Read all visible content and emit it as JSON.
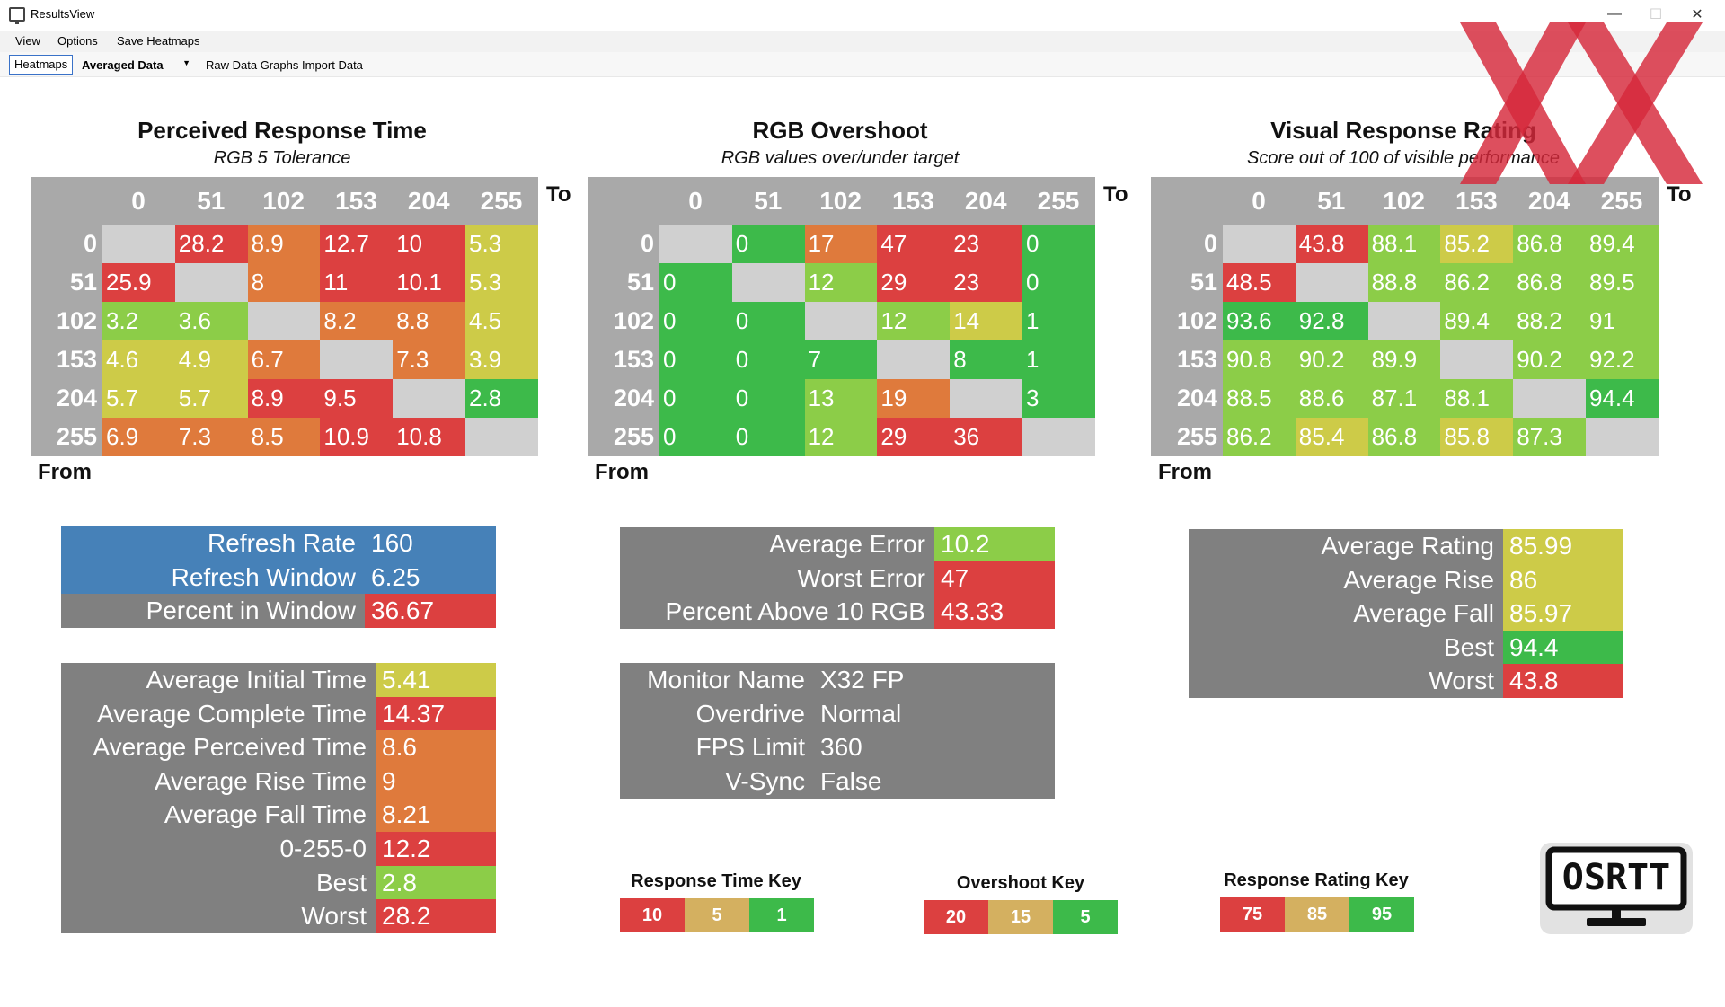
{
  "window": {
    "title": "ResultsView",
    "min": "—",
    "max": "☐",
    "close": "✕"
  },
  "menu": [
    "View",
    "Options",
    "Save Heatmaps"
  ],
  "toolbar": {
    "heatmaps": "Heatmaps",
    "mode": "Averaged Data",
    "raw": "Raw Data Graphs",
    "import": "Import Data"
  },
  "colors": {
    "red": "#dc4040",
    "orange": "#df7a3c",
    "yellow": "#cdcb48",
    "lightgreen": "#8ccd48",
    "green": "#3dba4a",
    "gray": "#808080",
    "blue": "#4681b8",
    "empty": "#d0d0d0",
    "header": "#a9a9a9"
  },
  "heatmaps": [
    {
      "title": "Perceived Response Time",
      "subtitle": "RGB 5 Tolerance",
      "to": "To",
      "from": "From",
      "cols": [
        "0",
        "51",
        "102",
        "153",
        "204",
        "255"
      ],
      "rows": [
        "0",
        "51",
        "102",
        "153",
        "204",
        "255"
      ],
      "cells": [
        [
          "",
          "28.2",
          "8.9",
          "12.7",
          "10",
          "5.3"
        ],
        [
          "25.9",
          "",
          "8",
          "11",
          "10.1",
          "5.3"
        ],
        [
          "3.2",
          "3.6",
          "",
          "8.2",
          "8.8",
          "4.5"
        ],
        [
          "4.6",
          "4.9",
          "6.7",
          "",
          "7.3",
          "3.9"
        ],
        [
          "5.7",
          "5.7",
          "8.9",
          "9.5",
          "",
          "2.8"
        ],
        [
          "6.9",
          "7.3",
          "8.5",
          "10.9",
          "10.8",
          ""
        ]
      ],
      "colors": [
        [
          "empty",
          "red",
          "orange",
          "red",
          "red",
          "yellow"
        ],
        [
          "red",
          "empty",
          "orange",
          "red",
          "red",
          "yellow"
        ],
        [
          "lightgreen",
          "lightgreen",
          "empty",
          "orange",
          "orange",
          "yellow"
        ],
        [
          "yellow",
          "yellow",
          "orange",
          "empty",
          "orange",
          "yellow"
        ],
        [
          "yellow",
          "yellow",
          "red",
          "red",
          "empty",
          "green"
        ],
        [
          "orange",
          "orange",
          "orange",
          "red",
          "red",
          "empty"
        ]
      ]
    },
    {
      "title": "RGB Overshoot",
      "subtitle": "RGB values over/under target",
      "to": "To",
      "from": "From",
      "cols": [
        "0",
        "51",
        "102",
        "153",
        "204",
        "255"
      ],
      "rows": [
        "0",
        "51",
        "102",
        "153",
        "204",
        "255"
      ],
      "cells": [
        [
          "",
          "0",
          "17",
          "47",
          "23",
          "0"
        ],
        [
          "0",
          "",
          "12",
          "29",
          "23",
          "0"
        ],
        [
          "0",
          "0",
          "",
          "12",
          "14",
          "1"
        ],
        [
          "0",
          "0",
          "7",
          "",
          "8",
          "1"
        ],
        [
          "0",
          "0",
          "13",
          "19",
          "",
          "3"
        ],
        [
          "0",
          "0",
          "12",
          "29",
          "36",
          ""
        ]
      ],
      "colors": [
        [
          "empty",
          "green",
          "orange",
          "red",
          "red",
          "green"
        ],
        [
          "green",
          "empty",
          "lightgreen",
          "red",
          "red",
          "green"
        ],
        [
          "green",
          "green",
          "empty",
          "lightgreen",
          "yellow",
          "green"
        ],
        [
          "green",
          "green",
          "green",
          "empty",
          "green",
          "green"
        ],
        [
          "green",
          "green",
          "lightgreen",
          "orange",
          "empty",
          "green"
        ],
        [
          "green",
          "green",
          "lightgreen",
          "red",
          "red",
          "empty"
        ]
      ]
    },
    {
      "title": "Visual Response Rating",
      "subtitle": "Score out of 100 of visible performance",
      "to": "To",
      "from": "From",
      "cols": [
        "0",
        "51",
        "102",
        "153",
        "204",
        "255"
      ],
      "rows": [
        "0",
        "51",
        "102",
        "153",
        "204",
        "255"
      ],
      "cells": [
        [
          "",
          "43.8",
          "88.1",
          "85.2",
          "86.8",
          "89.4"
        ],
        [
          "48.5",
          "",
          "88.8",
          "86.2",
          "86.8",
          "89.5"
        ],
        [
          "93.6",
          "92.8",
          "",
          "89.4",
          "88.2",
          "91"
        ],
        [
          "90.8",
          "90.2",
          "89.9",
          "",
          "90.2",
          "92.2"
        ],
        [
          "88.5",
          "88.6",
          "87.1",
          "88.1",
          "",
          "94.4"
        ],
        [
          "86.2",
          "85.4",
          "86.8",
          "85.8",
          "87.3",
          ""
        ]
      ],
      "colors": [
        [
          "empty",
          "red",
          "lightgreen",
          "yellow",
          "lightgreen",
          "lightgreen"
        ],
        [
          "red",
          "empty",
          "lightgreen",
          "lightgreen",
          "lightgreen",
          "lightgreen"
        ],
        [
          "green",
          "green",
          "empty",
          "lightgreen",
          "lightgreen",
          "lightgreen"
        ],
        [
          "lightgreen",
          "lightgreen",
          "lightgreen",
          "empty",
          "lightgreen",
          "lightgreen"
        ],
        [
          "lightgreen",
          "lightgreen",
          "lightgreen",
          "lightgreen",
          "empty",
          "green"
        ],
        [
          "lightgreen",
          "yellow",
          "lightgreen",
          "yellow",
          "lightgreen",
          "empty"
        ]
      ]
    }
  ],
  "panels": {
    "refresh": [
      {
        "label": "Refresh Rate",
        "value": "160",
        "labelColor": "blue",
        "valueColor": "blue"
      },
      {
        "label": "Refresh Window",
        "value": "6.25",
        "labelColor": "blue",
        "valueColor": "blue"
      },
      {
        "label": "Percent in Window",
        "value": "36.67",
        "labelColor": "gray",
        "valueColor": "red"
      }
    ],
    "times": [
      {
        "label": "Average Initial Time",
        "value": "5.41",
        "valueColor": "yellow"
      },
      {
        "label": "Average Complete Time",
        "value": "14.37",
        "valueColor": "red"
      },
      {
        "label": "Average Perceived Time",
        "value": "8.6",
        "valueColor": "orange"
      },
      {
        "label": "Average Rise Time",
        "value": "9",
        "valueColor": "orange"
      },
      {
        "label": "Average Fall Time",
        "value": "8.21",
        "valueColor": "orange"
      },
      {
        "label": "0-255-0",
        "value": "12.2",
        "valueColor": "red"
      },
      {
        "label": "Best",
        "value": "2.8",
        "valueColor": "lightgreen"
      },
      {
        "label": "Worst",
        "value": "28.2",
        "valueColor": "red"
      }
    ],
    "errors": [
      {
        "label": "Average Error",
        "value": "10.2",
        "valueColor": "lightgreen"
      },
      {
        "label": "Worst Error",
        "value": "47",
        "valueColor": "red"
      },
      {
        "label": "Percent Above 10 RGB",
        "value": "43.33",
        "valueColor": "red"
      }
    ],
    "monitor": [
      {
        "label": "Monitor Name",
        "value": "X32 FP",
        "valueColor": "gray"
      },
      {
        "label": "Overdrive",
        "value": "Normal",
        "valueColor": "gray"
      },
      {
        "label": "FPS Limit",
        "value": "360",
        "valueColor": "gray"
      },
      {
        "label": "V-Sync",
        "value": "False",
        "valueColor": "gray"
      }
    ],
    "rating": [
      {
        "label": "Average Rating",
        "value": "85.99",
        "valueColor": "yellow"
      },
      {
        "label": "Average Rise",
        "value": "86",
        "valueColor": "yellow"
      },
      {
        "label": "Average Fall",
        "value": "85.97",
        "valueColor": "yellow"
      },
      {
        "label": "Best",
        "value": "94.4",
        "valueColor": "green"
      },
      {
        "label": "Worst",
        "value": "43.8",
        "valueColor": "red"
      }
    ]
  },
  "keys": [
    {
      "title": "Response Time Key",
      "values": [
        "10",
        "5",
        "1"
      ]
    },
    {
      "title": "Overshoot Key",
      "values": [
        "20",
        "15",
        "5"
      ]
    },
    {
      "title": "Response Rating Key",
      "values": [
        "75",
        "85",
        "95"
      ]
    }
  ],
  "logo": {
    "text": "OSRTT"
  }
}
